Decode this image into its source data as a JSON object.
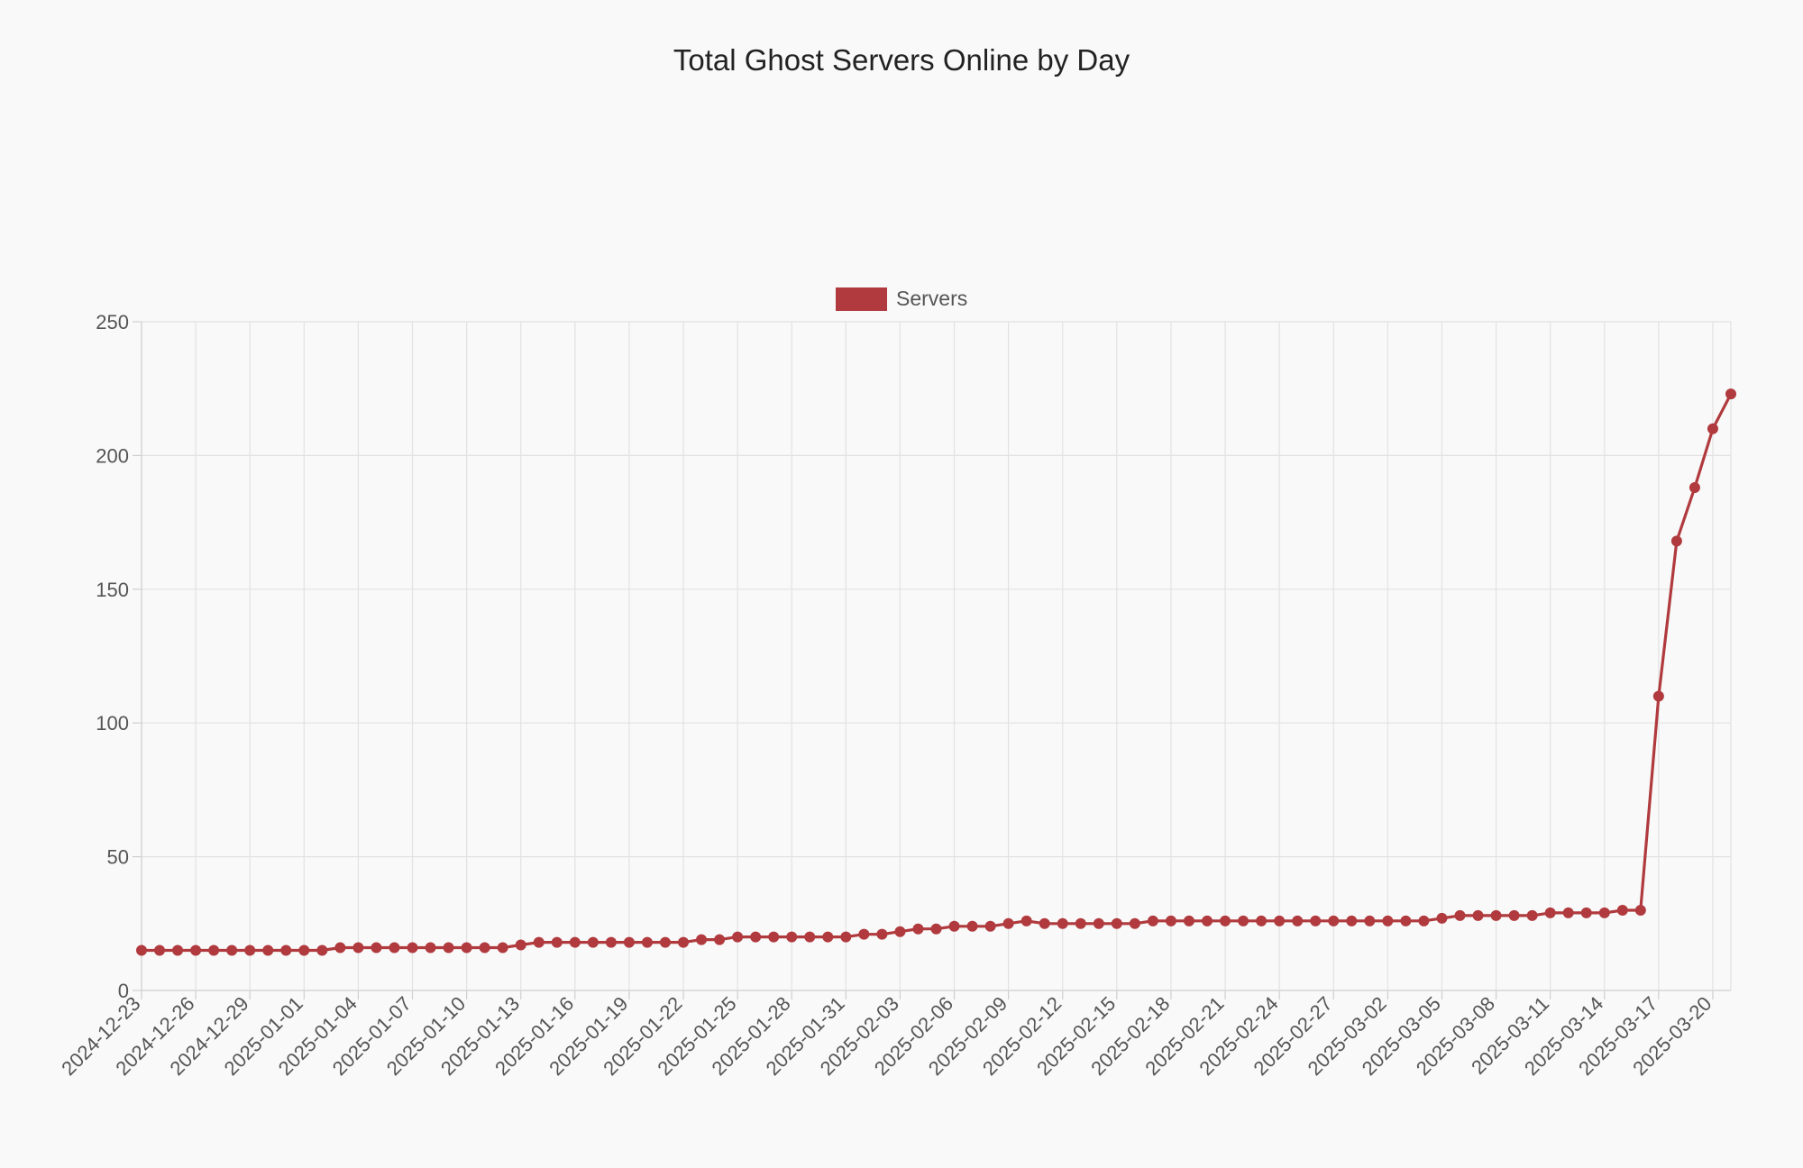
{
  "chart_data": {
    "type": "line",
    "title": "Total Ghost Servers Online by Day",
    "xlabel": "",
    "ylabel": "",
    "ylim": [
      0,
      250
    ],
    "yticks": [
      0,
      50,
      100,
      150,
      200,
      250
    ],
    "grid": true,
    "legend_position": "top",
    "x_tick_labels": [
      "2024-12-23",
      "2024-12-26",
      "2024-12-29",
      "2025-01-01",
      "2025-01-04",
      "2025-01-07",
      "2025-01-10",
      "2025-01-13",
      "2025-01-16",
      "2025-01-19",
      "2025-01-22",
      "2025-01-25",
      "2025-01-28",
      "2025-01-31",
      "2025-02-03",
      "2025-02-06",
      "2025-02-09",
      "2025-02-12",
      "2025-02-15",
      "2025-02-18",
      "2025-02-21",
      "2025-02-24",
      "2025-02-27",
      "2025-03-02",
      "2025-03-05",
      "2025-03-08",
      "2025-03-11",
      "2025-03-14",
      "2025-03-17",
      "2025-03-20"
    ],
    "x": [
      "2024-12-23",
      "2024-12-24",
      "2024-12-25",
      "2024-12-26",
      "2024-12-27",
      "2024-12-28",
      "2024-12-29",
      "2024-12-30",
      "2024-12-31",
      "2025-01-01",
      "2025-01-02",
      "2025-01-03",
      "2025-01-04",
      "2025-01-05",
      "2025-01-06",
      "2025-01-07",
      "2025-01-08",
      "2025-01-09",
      "2025-01-10",
      "2025-01-11",
      "2025-01-12",
      "2025-01-13",
      "2025-01-14",
      "2025-01-15",
      "2025-01-16",
      "2025-01-17",
      "2025-01-18",
      "2025-01-19",
      "2025-01-20",
      "2025-01-21",
      "2025-01-22",
      "2025-01-23",
      "2025-01-24",
      "2025-01-25",
      "2025-01-26",
      "2025-01-27",
      "2025-01-28",
      "2025-01-29",
      "2025-01-30",
      "2025-01-31",
      "2025-02-01",
      "2025-02-02",
      "2025-02-03",
      "2025-02-04",
      "2025-02-05",
      "2025-02-06",
      "2025-02-07",
      "2025-02-08",
      "2025-02-09",
      "2025-02-10",
      "2025-02-11",
      "2025-02-12",
      "2025-02-13",
      "2025-02-14",
      "2025-02-15",
      "2025-02-16",
      "2025-02-17",
      "2025-02-18",
      "2025-02-19",
      "2025-02-20",
      "2025-02-21",
      "2025-02-22",
      "2025-02-23",
      "2025-02-24",
      "2025-02-25",
      "2025-02-26",
      "2025-02-27",
      "2025-02-28",
      "2025-03-01",
      "2025-03-02",
      "2025-03-03",
      "2025-03-04",
      "2025-03-05",
      "2025-03-06",
      "2025-03-07",
      "2025-03-08",
      "2025-03-09",
      "2025-03-10",
      "2025-03-11",
      "2025-03-12",
      "2025-03-13",
      "2025-03-14",
      "2025-03-15",
      "2025-03-16",
      "2025-03-17",
      "2025-03-18",
      "2025-03-19",
      "2025-03-20",
      "2025-03-21"
    ],
    "series": [
      {
        "name": "Servers",
        "color": "#b03a3e",
        "values": [
          15,
          15,
          15,
          15,
          15,
          15,
          15,
          15,
          15,
          15,
          15,
          16,
          16,
          16,
          16,
          16,
          16,
          16,
          16,
          16,
          16,
          17,
          18,
          18,
          18,
          18,
          18,
          18,
          18,
          18,
          18,
          19,
          19,
          20,
          20,
          20,
          20,
          20,
          20,
          20,
          21,
          21,
          22,
          23,
          23,
          24,
          24,
          24,
          25,
          26,
          25,
          25,
          25,
          25,
          25,
          25,
          26,
          26,
          26,
          26,
          26,
          26,
          26,
          26,
          26,
          26,
          26,
          26,
          26,
          26,
          26,
          26,
          27,
          28,
          28,
          28,
          28,
          28,
          29,
          29,
          29,
          29,
          30,
          30,
          110,
          168,
          188,
          210,
          223
        ]
      }
    ]
  }
}
